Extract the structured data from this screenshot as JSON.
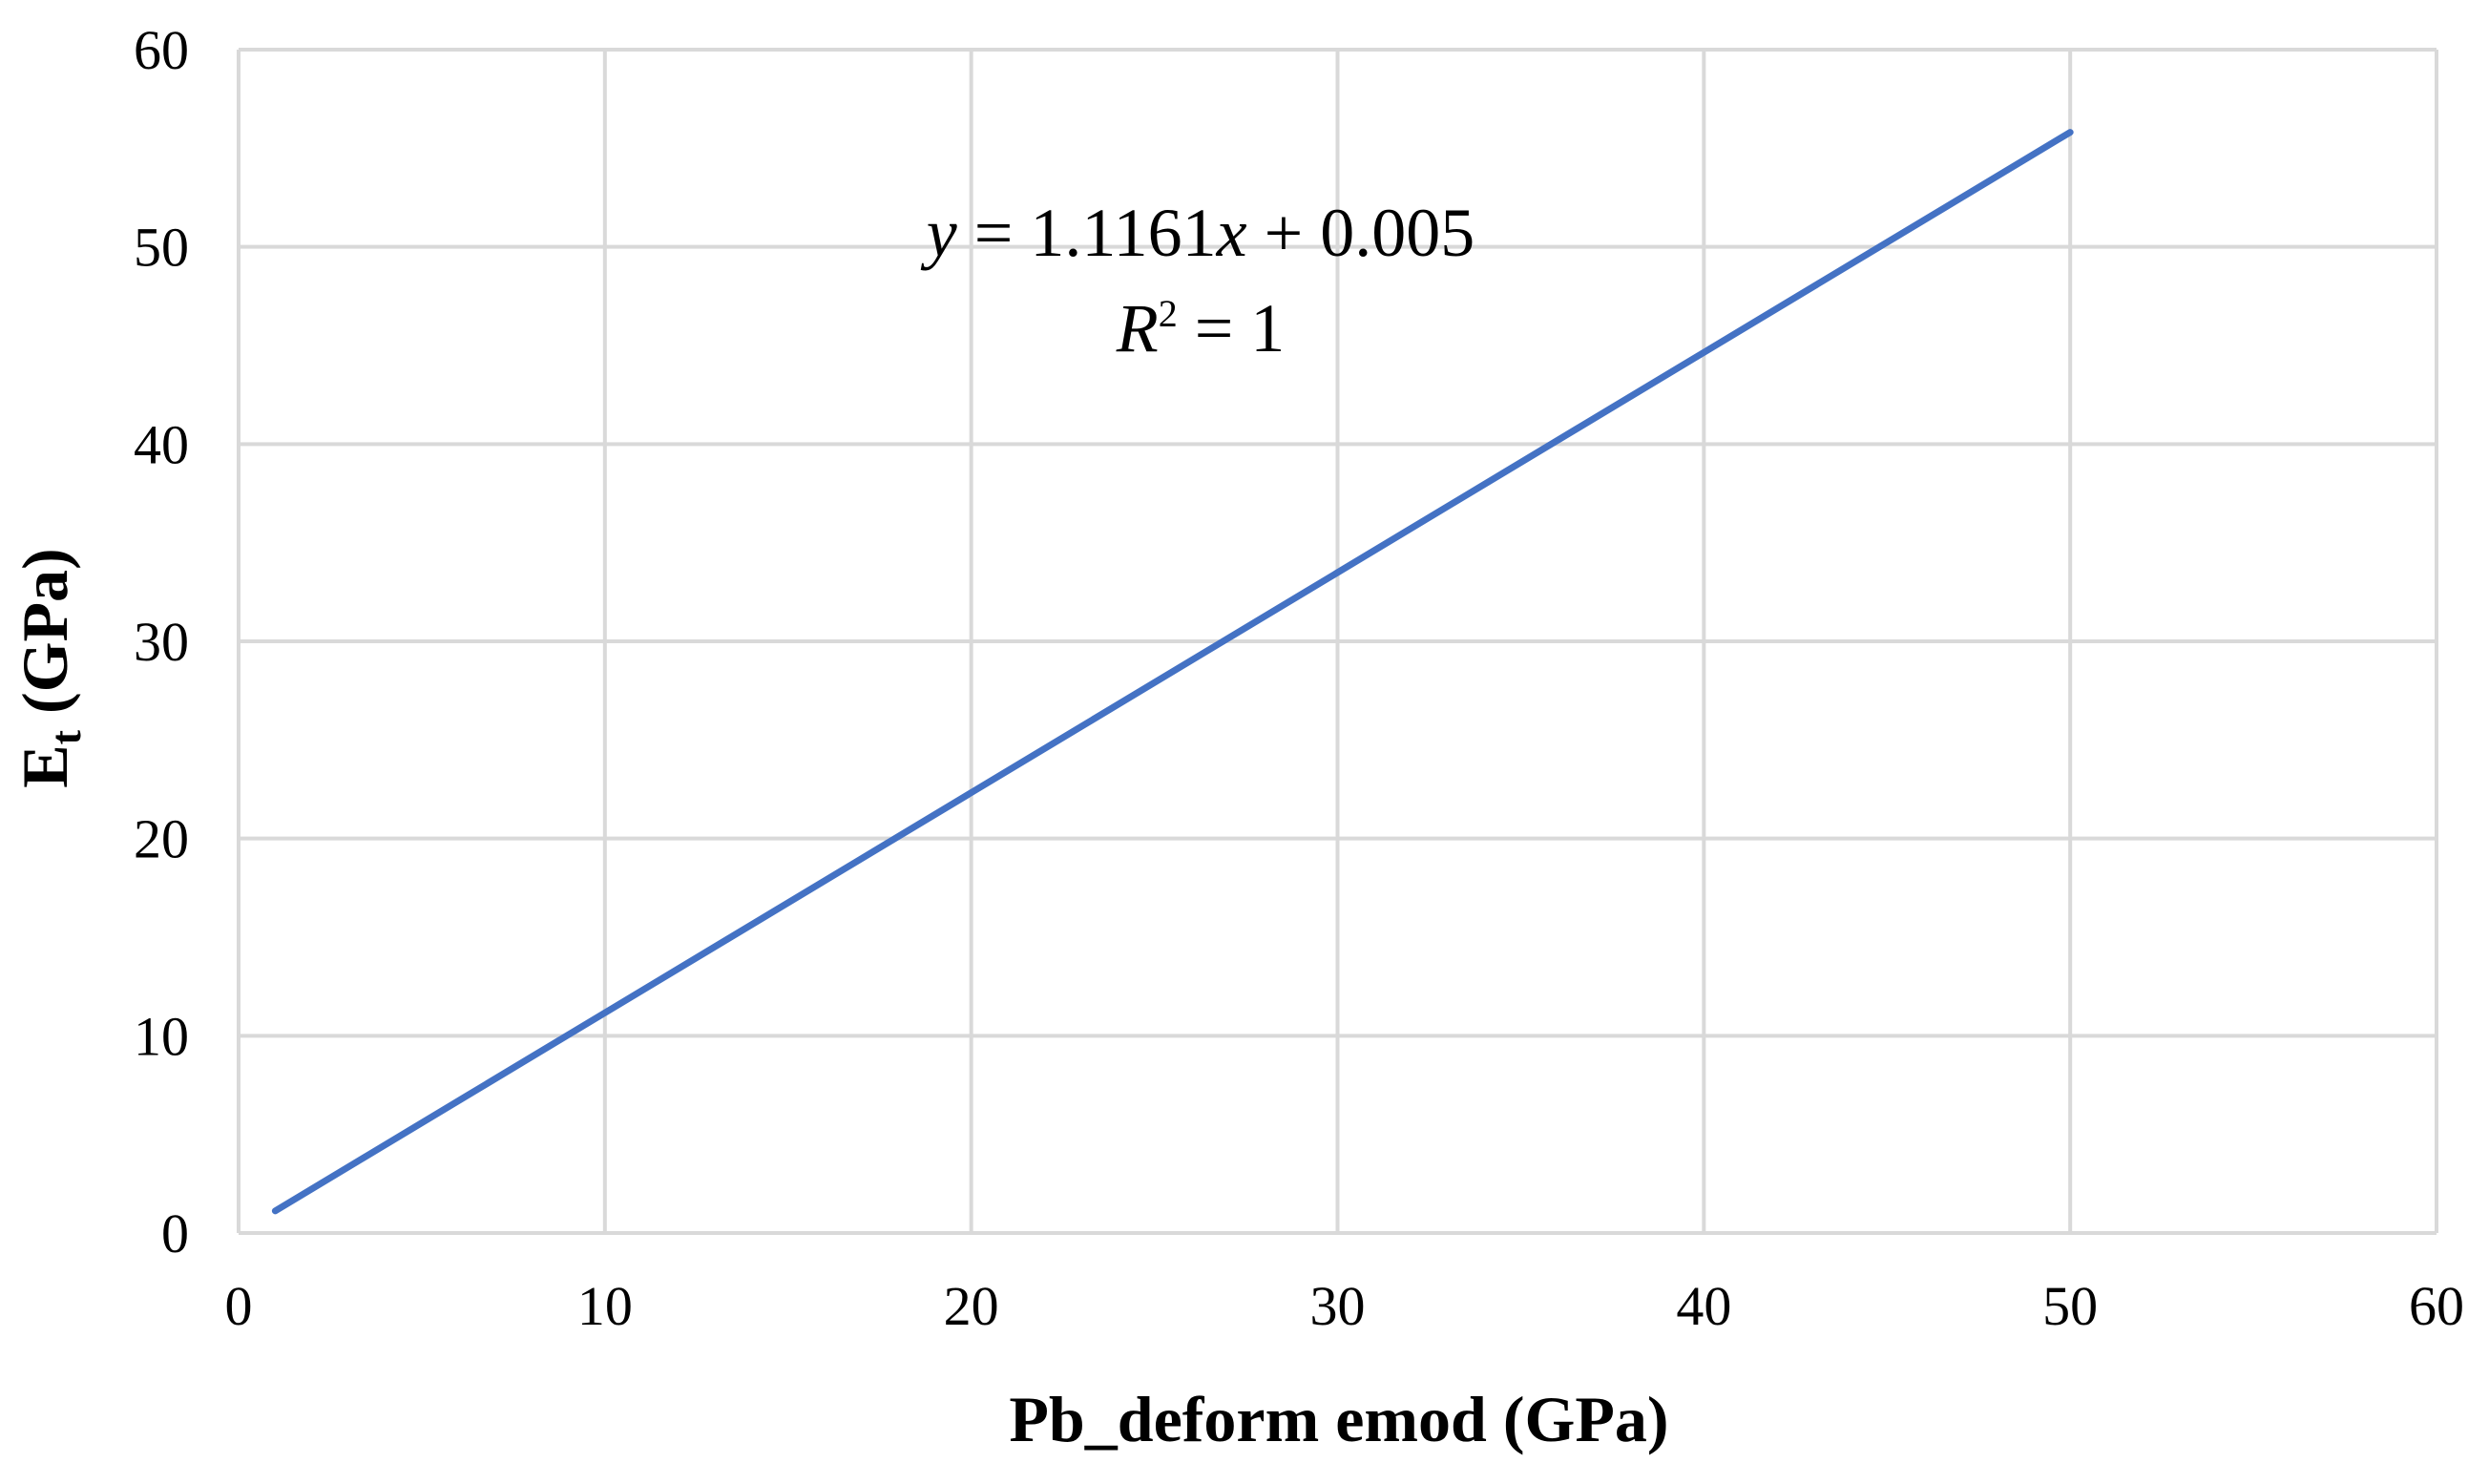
{
  "chart_data": {
    "type": "line",
    "title": "",
    "xlabel": "Pb_deform emod (GPa)",
    "ylabel": {
      "main": "E",
      "subscript": "t",
      "unit": " (GPa)"
    },
    "xlim": [
      0,
      60
    ],
    "ylim": [
      0,
      60
    ],
    "x_ticks": [
      0,
      10,
      20,
      30,
      40,
      50,
      60
    ],
    "y_ticks": [
      0,
      10,
      20,
      30,
      40,
      50,
      60
    ],
    "grid": true,
    "legend": "none",
    "series": [
      {
        "color": "#4472c4",
        "x": [
          1,
          50
        ],
        "y": [
          1.12,
          55.81
        ]
      }
    ],
    "annotations": {
      "equation": {
        "y_var": "y",
        "eq_part": " = 1.1161",
        "x_var": "x",
        "rest": " + 0.005"
      },
      "r_squared": {
        "var": "R",
        "sup": "2",
        "rest": " = 1"
      }
    }
  }
}
